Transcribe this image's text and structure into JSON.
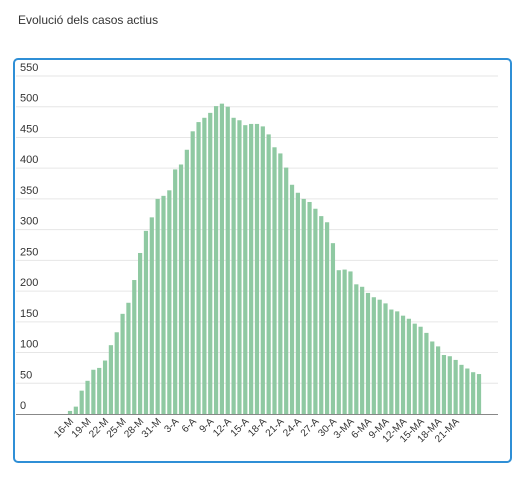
{
  "title": "Evolució dels casos actius",
  "colors": {
    "bar": "#8fc9a2",
    "bar_stroke": "#6fb386",
    "grid": "#e6e6e6",
    "axis": "#888888",
    "border": "#2f8fd6"
  },
  "chart_data": {
    "type": "bar",
    "ylim": [
      0,
      550
    ],
    "yticks": [
      0,
      50,
      100,
      150,
      200,
      250,
      300,
      350,
      400,
      450,
      500,
      550
    ],
    "grid": true,
    "xticklabels": [
      "16-M",
      "19-M",
      "22-M",
      "25-M",
      "28-M",
      "31-M",
      "3-A",
      "6-A",
      "9-A",
      "12-A",
      "15-A",
      "18-A",
      "21-A",
      "24-A",
      "27-A",
      "30-A",
      "3-MA",
      "6-MA",
      "9-MA",
      "12-MA",
      "15-MA",
      "18-MA",
      "21-MA"
    ],
    "xtick_every": 3,
    "values": [
      5,
      12,
      38,
      54,
      72,
      75,
      87,
      112,
      133,
      163,
      181,
      218,
      262,
      298,
      320,
      350,
      355,
      364,
      398,
      406,
      430,
      460,
      475,
      482,
      490,
      501,
      505,
      500,
      482,
      478,
      470,
      472,
      472,
      468,
      455,
      434,
      424,
      401,
      373,
      360,
      350,
      345,
      334,
      322,
      312,
      278,
      234,
      235,
      232,
      211,
      207,
      197,
      190,
      186,
      180,
      170,
      167,
      160,
      155,
      147,
      142,
      132,
      118,
      110,
      96,
      94,
      88,
      80,
      74,
      68,
      65
    ]
  }
}
